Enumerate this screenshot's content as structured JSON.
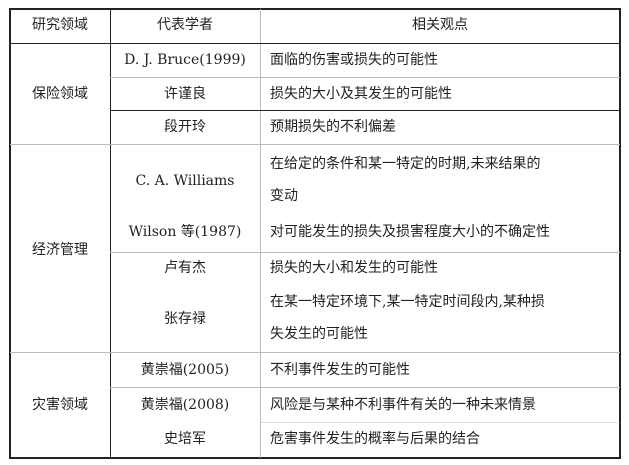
{
  "table": {
    "headers": [
      "研究领域",
      "代表学者",
      "相关观点"
    ],
    "groups": [
      {
        "field": "保险领域",
        "rows": [
          {
            "scholar": "D. J. Bruce(1999)",
            "view": [
              "面临的伤害或损失的可能性"
            ]
          },
          {
            "scholar": "许谨良",
            "view": [
              "损失的大小及其发生的可能性"
            ]
          },
          {
            "scholar": "段开玲",
            "view": [
              "预期损失的不利偏差"
            ]
          }
        ]
      },
      {
        "field": "经济管理",
        "rows": [
          {
            "scholar": "C. A. Williams",
            "view": [
              "在给定的条件和某一特定的时期,未来结果的",
              "变动"
            ]
          },
          {
            "scholar": "Wilson 等(1987)",
            "view": [
              "对可能发生的损失及损害程度大小的不确定性"
            ]
          },
          {
            "scholar": "卢有杰",
            "view": [
              "损失的大小和发生的可能性"
            ]
          },
          {
            "scholar": "张存禄",
            "view": [
              "在某一特定环境下,某一特定时间段内,某种损",
              "失发生的可能性"
            ]
          }
        ]
      },
      {
        "field": "灾害领域",
        "rows": [
          {
            "scholar": "黄崇福(2005)",
            "view": [
              "不利事件发生的可能性"
            ]
          },
          {
            "scholar": "黄崇福(2008)",
            "view": [
              "风险是与某种不利事件有关的一种未来情景"
            ]
          },
          {
            "scholar": "史培军",
            "view": [
              "危害事件发生的概率与后果的结合"
            ]
          }
        ]
      }
    ]
  }
}
